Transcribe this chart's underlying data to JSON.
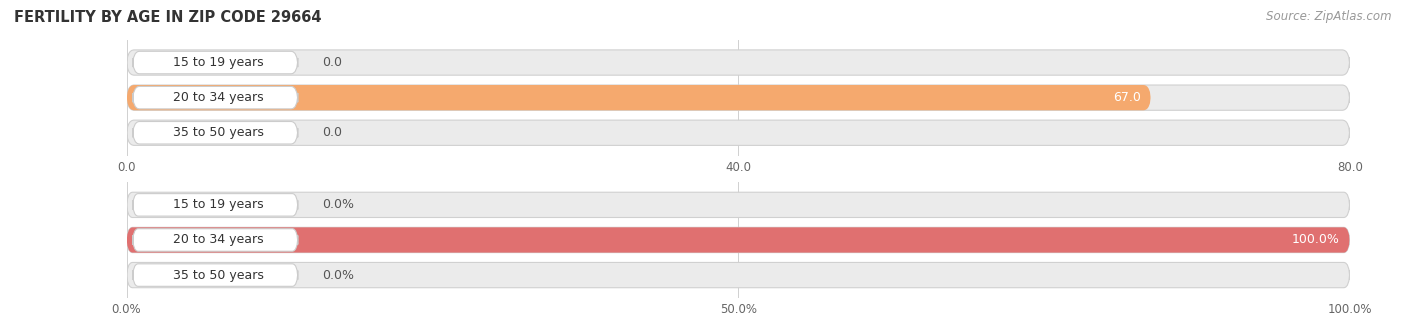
{
  "title": "FERTILITY BY AGE IN ZIP CODE 29664",
  "source": "Source: ZipAtlas.com",
  "top_chart": {
    "categories": [
      "15 to 19 years",
      "20 to 34 years",
      "35 to 50 years"
    ],
    "values": [
      0.0,
      67.0,
      0.0
    ],
    "xlim": [
      0,
      80
    ],
    "xticks": [
      0.0,
      40.0,
      80.0
    ],
    "xtick_labels": [
      "0.0",
      "40.0",
      "80.0"
    ],
    "bar_color": "#F5A96E",
    "bar_bg_color": "#EBEBEB",
    "label_bg_color": "#FFFFFF",
    "label_border_color": "#CCCCCC",
    "bar_height": 0.72,
    "value_label_color": "#555555",
    "value_label_color_on_bar": "#ffffff"
  },
  "bottom_chart": {
    "categories": [
      "15 to 19 years",
      "20 to 34 years",
      "35 to 50 years"
    ],
    "values": [
      0.0,
      100.0,
      0.0
    ],
    "xlim": [
      0,
      100
    ],
    "xticks": [
      0.0,
      50.0,
      100.0
    ],
    "xtick_labels": [
      "0.0%",
      "50.0%",
      "100.0%"
    ],
    "bar_color": "#E07070",
    "bar_bg_color": "#EBEBEB",
    "label_bg_color": "#FFFFFF",
    "label_border_color": "#CCCCCC",
    "bar_height": 0.72,
    "value_label_color": "#555555",
    "value_label_color_on_bar": "#ffffff"
  },
  "background_color": "#ffffff",
  "title_fontsize": 10.5,
  "label_fontsize": 9,
  "tick_fontsize": 8.5,
  "source_fontsize": 8.5
}
